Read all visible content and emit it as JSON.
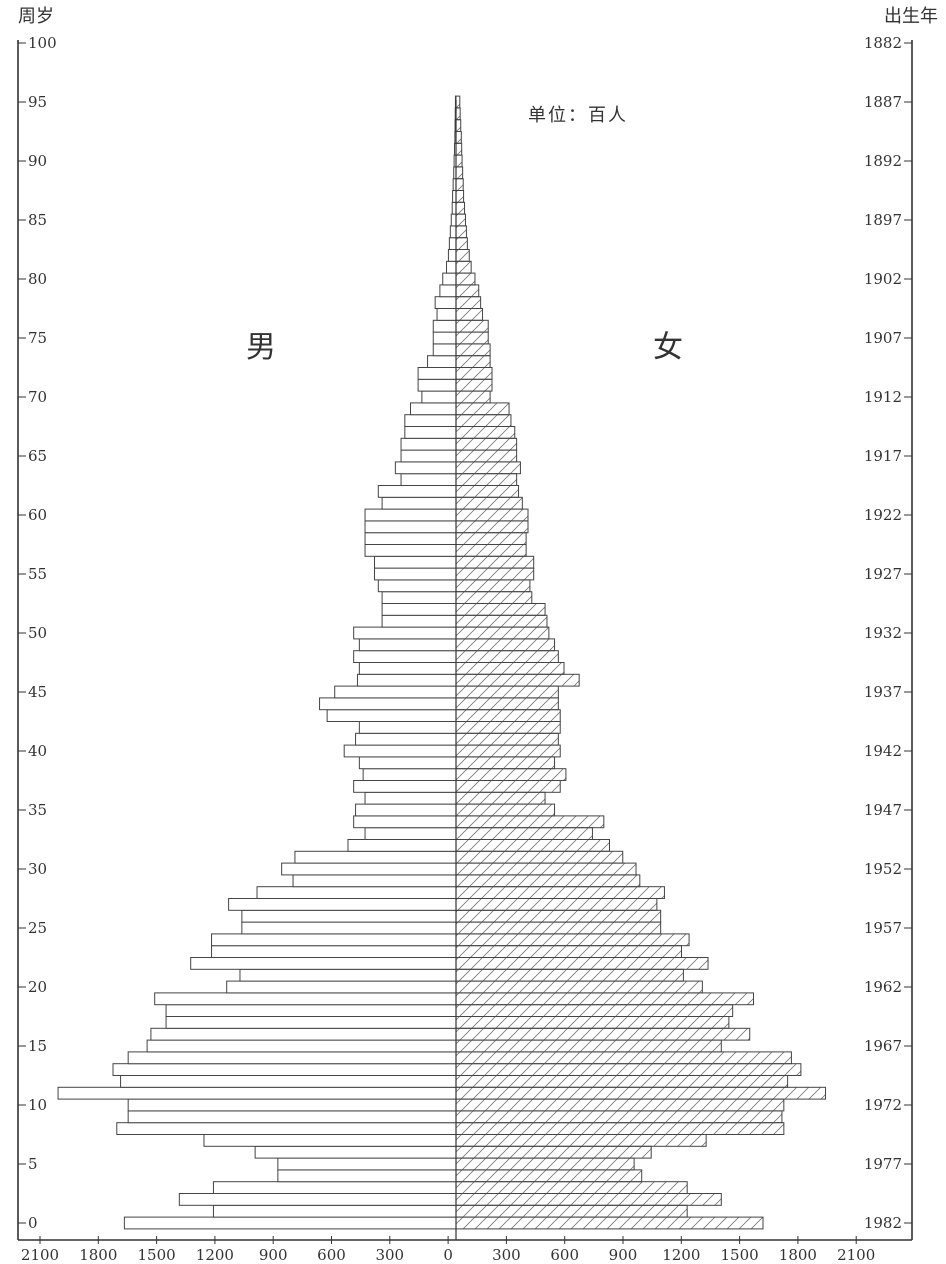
{
  "chart_data": {
    "type": "bar",
    "orientation": "horizontal-population-pyramid",
    "title": "",
    "left_axis_label": "周岁",
    "right_axis_label": "出生年",
    "unit_label": "单位：百人",
    "male_label": "男",
    "female_label": "女",
    "x_ticks": [
      "2100",
      "1800",
      "1500",
      "1200",
      "900",
      "600",
      "300",
      "0",
      "300",
      "600",
      "900",
      "1200",
      "1500",
      "1800",
      "2100"
    ],
    "xlim": [
      -2100,
      2100
    ],
    "age_ticks": [
      "100",
      "95",
      "90",
      "85",
      "80",
      "75",
      "70",
      "65",
      "60",
      "55",
      "50",
      "45",
      "40",
      "35",
      "30",
      "25",
      "20",
      "15",
      "10",
      "5",
      "0"
    ],
    "birth_year_ticks": [
      "1882",
      "1887",
      "1892",
      "1897",
      "1902",
      "1907",
      "1912",
      "1917",
      "1922",
      "1927",
      "1932",
      "1937",
      "1942",
      "1947",
      "1952",
      "1957",
      "1962",
      "1967",
      "1972",
      "1977",
      "1982"
    ],
    "ages": [
      0,
      1,
      2,
      3,
      4,
      5,
      6,
      7,
      8,
      9,
      10,
      11,
      12,
      13,
      14,
      15,
      16,
      17,
      18,
      19,
      20,
      21,
      22,
      23,
      24,
      25,
      26,
      27,
      28,
      29,
      30,
      31,
      32,
      33,
      34,
      35,
      36,
      37,
      38,
      39,
      40,
      41,
      42,
      43,
      44,
      45,
      46,
      47,
      48,
      49,
      50,
      51,
      52,
      53,
      54,
      55,
      56,
      57,
      58,
      59,
      60,
      61,
      62,
      63,
      64,
      65,
      66,
      67,
      68,
      69,
      70,
      71,
      72,
      73,
      74,
      75,
      76,
      77,
      78,
      79,
      80,
      81,
      82,
      83,
      84,
      85,
      86,
      87,
      88,
      89,
      90,
      91,
      92,
      93,
      94,
      95
    ],
    "series": [
      {
        "name": "男",
        "values": [
          1750,
          1280,
          1460,
          1280,
          940,
          940,
          1060,
          1330,
          1790,
          1730,
          1730,
          2100,
          1770,
          1810,
          1730,
          1630,
          1610,
          1530,
          1530,
          1590,
          1210,
          1140,
          1400,
          1290,
          1290,
          1130,
          1130,
          1200,
          1050,
          860,
          920,
          850,
          570,
          480,
          540,
          530,
          480,
          540,
          490,
          510,
          590,
          530,
          510,
          680,
          720,
          640,
          520,
          510,
          540,
          510,
          540,
          390,
          390,
          390,
          410,
          430,
          430,
          480,
          480,
          480,
          480,
          390,
          410,
          290,
          320,
          290,
          290,
          270,
          270,
          240,
          180,
          200,
          200,
          150,
          120,
          120,
          120,
          100,
          110,
          85,
          70,
          50,
          40,
          35,
          30,
          25,
          20,
          18,
          15,
          12,
          10,
          8,
          6,
          5,
          4,
          3
        ],
        "style": "hollow"
      },
      {
        "name": "女",
        "values": [
          1620,
          1220,
          1400,
          1220,
          980,
          940,
          1030,
          1320,
          1730,
          1720,
          1730,
          1950,
          1750,
          1820,
          1770,
          1400,
          1550,
          1440,
          1460,
          1570,
          1300,
          1200,
          1330,
          1190,
          1230,
          1080,
          1080,
          1060,
          1100,
          970,
          950,
          880,
          810,
          720,
          780,
          520,
          470,
          550,
          580,
          520,
          550,
          540,
          550,
          550,
          540,
          540,
          650,
          570,
          540,
          520,
          490,
          480,
          470,
          400,
          390,
          410,
          410,
          370,
          370,
          380,
          380,
          350,
          330,
          320,
          340,
          320,
          320,
          310,
          290,
          280,
          180,
          190,
          190,
          180,
          180,
          170,
          170,
          140,
          130,
          120,
          100,
          80,
          70,
          60,
          55,
          50,
          45,
          40,
          38,
          35,
          32,
          30,
          28,
          25,
          22,
          20
        ],
        "style": "hatched"
      }
    ],
    "grid": false,
    "legend": "none"
  }
}
